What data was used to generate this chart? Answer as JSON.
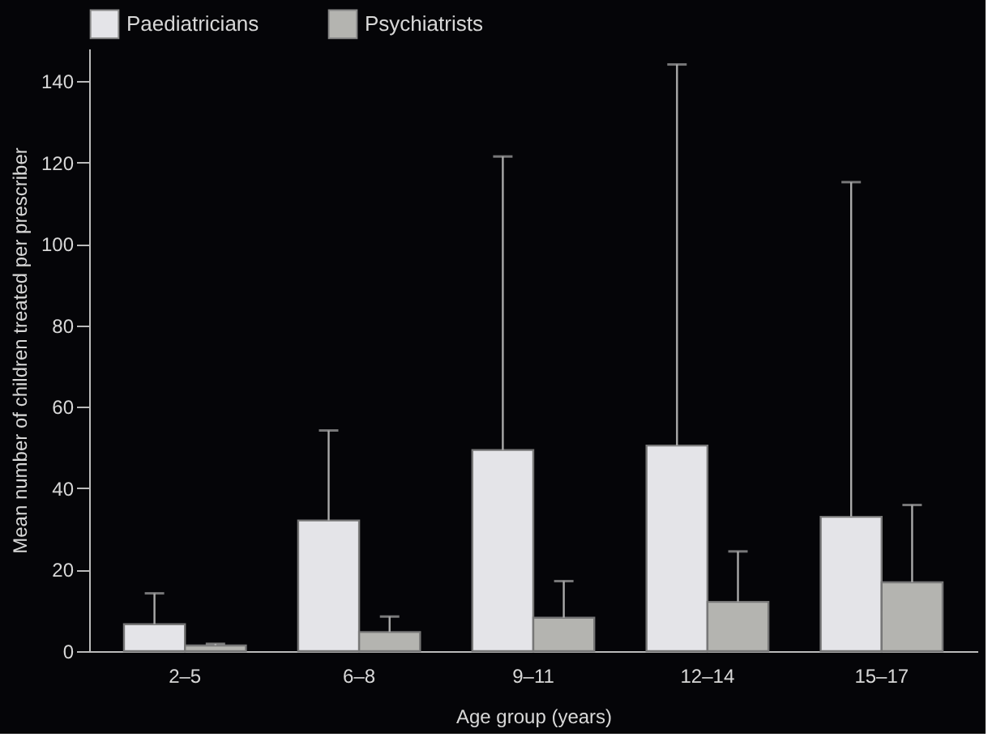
{
  "chart_data": {
    "type": "bar",
    "xlabel": "Age group (years)",
    "ylabel": "Mean number of children treated per prescriber",
    "categories": [
      "2–5",
      "6–8",
      "9–11",
      "12–14",
      "15–17"
    ],
    "series": [
      {
        "name": "Paediatricians",
        "color": "#e4e4e8",
        "values": [
          6.6,
          32.1,
          49.4,
          50.5,
          33.0
        ],
        "errors": [
          [
            6.6,
            14.2
          ],
          [
            32.1,
            54.2
          ],
          [
            49.4,
            121.5
          ],
          [
            50.5,
            144.1
          ],
          [
            33.0,
            115.2
          ]
        ]
      },
      {
        "name": "Psychiatrists",
        "color": "#b4b4b0",
        "values": [
          1.4,
          4.7,
          8.2,
          12.1,
          16.9
        ],
        "errors": [
          [
            1.4,
            1.8
          ],
          [
            4.7,
            8.5
          ],
          [
            8.2,
            17.2
          ],
          [
            12.1,
            24.5
          ],
          [
            16.9,
            35.9
          ]
        ]
      }
    ],
    "ylim": [
      0,
      148
    ],
    "yticks": [
      0,
      20,
      40,
      60,
      80,
      100,
      120,
      140
    ],
    "grid": false,
    "legend": "top"
  }
}
